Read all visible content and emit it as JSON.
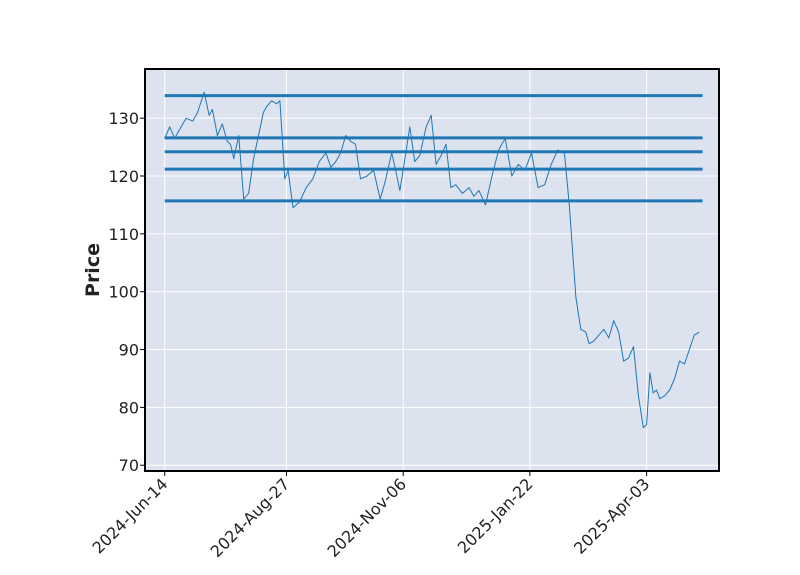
{
  "chart_data": {
    "type": "line",
    "title": "",
    "xlabel": "",
    "ylabel": "Price",
    "ylim": [
      69,
      138.5
    ],
    "xlim": [
      "2024-06-02",
      "2025-05-17"
    ],
    "grid": true,
    "x_ticks": [
      "2024-06-14",
      "2024-08-27",
      "2024-11-06",
      "2025-01-22",
      "2025-04-03"
    ],
    "x_tick_labels": [
      "2024-Jun-14",
      "2024-Aug-27",
      "2024-Nov-06",
      "2025-Jan-22",
      "2025-Apr-03"
    ],
    "y_ticks": [
      70,
      80,
      90,
      100,
      110,
      120,
      130
    ],
    "y_tick_labels": [
      "70",
      "80",
      "90",
      "100",
      "110",
      "120",
      "130"
    ],
    "colors": {
      "line": "#1f77b4",
      "background": "#dde2ef",
      "grid": "#ffffff",
      "frame": "#000000"
    },
    "price_series": {
      "x": [
        "2024-06-14",
        "2024-06-17",
        "2024-06-20",
        "2024-06-24",
        "2024-06-27",
        "2024-07-01",
        "2024-07-04",
        "2024-07-08",
        "2024-07-11",
        "2024-07-13",
        "2024-07-16",
        "2024-07-19",
        "2024-07-22",
        "2024-07-24",
        "2024-07-26",
        "2024-07-29",
        "2024-08-01",
        "2024-08-04",
        "2024-08-07",
        "2024-08-10",
        "2024-08-13",
        "2024-08-15",
        "2024-08-18",
        "2024-08-21",
        "2024-08-23",
        "2024-08-26",
        "2024-08-28",
        "2024-08-31",
        "2024-09-04",
        "2024-09-08",
        "2024-09-12",
        "2024-09-16",
        "2024-09-20",
        "2024-09-23",
        "2024-09-26",
        "2024-09-29",
        "2024-10-02",
        "2024-10-05",
        "2024-10-08",
        "2024-10-11",
        "2024-10-15",
        "2024-10-19",
        "2024-10-23",
        "2024-10-26",
        "2024-10-30",
        "2024-11-01",
        "2024-11-04",
        "2024-11-07",
        "2024-11-10",
        "2024-11-13",
        "2024-11-16",
        "2024-11-20",
        "2024-11-23",
        "2024-11-26",
        "2024-11-29",
        "2024-12-02",
        "2024-12-05",
        "2024-12-08",
        "2024-12-12",
        "2024-12-16",
        "2024-12-19",
        "2024-12-22",
        "2024-12-26",
        "2024-12-30",
        "2025-01-03",
        "2025-01-07",
        "2025-01-11",
        "2025-01-15",
        "2025-01-19",
        "2025-01-23",
        "2025-01-27",
        "2025-01-31",
        "2025-02-04",
        "2025-02-08",
        "2025-02-12",
        "2025-02-15",
        "2025-02-19",
        "2025-02-22",
        "2025-02-25",
        "2025-02-27",
        "2025-03-02",
        "2025-03-05",
        "2025-03-08",
        "2025-03-11",
        "2025-03-14",
        "2025-03-17",
        "2025-03-20",
        "2025-03-23",
        "2025-03-26",
        "2025-03-29",
        "2025-04-01",
        "2025-04-03",
        "2025-04-05",
        "2025-04-07",
        "2025-04-09",
        "2025-04-11",
        "2025-04-14",
        "2025-04-17",
        "2025-04-20",
        "2025-04-23",
        "2025-04-26",
        "2025-04-29",
        "2025-05-02",
        "2025-05-05"
      ],
      "y": [
        126.5,
        128.5,
        126.5,
        128.5,
        130,
        129.5,
        131,
        134.5,
        130.5,
        131.5,
        127,
        129,
        126,
        125.5,
        123,
        127,
        116,
        117,
        123,
        127,
        131,
        132,
        133,
        132.5,
        133,
        119.5,
        121,
        114.5,
        115.5,
        118,
        119.5,
        122.5,
        124,
        121.5,
        122.5,
        124,
        127,
        126,
        125.5,
        119.5,
        120,
        121,
        116,
        119,
        124,
        121.5,
        117.5,
        123,
        128.5,
        122.5,
        123.5,
        128.5,
        130.5,
        122,
        123.5,
        125.5,
        118,
        118.5,
        117,
        118,
        116.5,
        117.5,
        115,
        120,
        124.5,
        126.5,
        120,
        122,
        121,
        124,
        118,
        118.5,
        122,
        124.5,
        124,
        115,
        99,
        93.5,
        93,
        91,
        91.5,
        92.5,
        93.5,
        92,
        95,
        93,
        88,
        88.5,
        90.5,
        82,
        76.5,
        77,
        86,
        82.5,
        83,
        81.5,
        82,
        83,
        85,
        88,
        87.5,
        90,
        92.5,
        93
      ]
    },
    "level_lines": [
      133.9,
      126.6,
      124.2,
      121.2,
      115.7
    ],
    "level_start": "2024-06-14",
    "level_end": "2025-05-07"
  }
}
